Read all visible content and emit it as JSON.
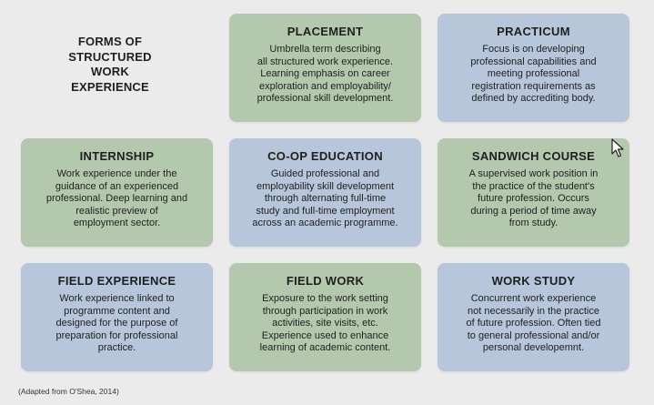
{
  "title": "FORMS OF\nSTRUCTURED\nWORK\nEXPERIENCE",
  "cards": [
    {
      "title": "PLACEMENT",
      "description": "Umbrella term describing\nall structured work experience.\nLearning emphasis on career\nexploration and employability/\nprofessional skill development.",
      "color": "#b4c8ad"
    },
    {
      "title": "PRACTICUM",
      "description": "Focus is on developing\nprofessional capabilities and\nmeeting professional\nregistration requirements as\ndefined by accrediting body.",
      "color": "#b7c6da"
    },
    {
      "title": "INTERNSHIP",
      "description": "Work experience under the\nguidance of an experienced\nprofessional. Deep learning and\nrealistic preview of\nemployment sector.",
      "color": "#b4c8ad"
    },
    {
      "title": "CO-OP EDUCATION",
      "description": "Guided professional and\nemployability skill development\nthrough alternating full-time\nstudy and full-time employment\nacross an academic programme.",
      "color": "#b7c6da"
    },
    {
      "title": "SANDWICH COURSE",
      "description": "A supervised work position in\nthe practice of the student's\nfuture profession. Occurs\nduring a period of time away\nfrom study.",
      "color": "#b4c8ad"
    },
    {
      "title": "FIELD EXPERIENCE",
      "description": "Work experience linked to\nprogramme content and\ndesigned for the purpose of\npreparation for professional\npractice.",
      "color": "#b7c6da"
    },
    {
      "title": "FIELD WORK",
      "description": "Exposure to the work setting\nthrough participation in work\nactivities, site visits, etc.\nExperience used to enhance\nlearning of academic content.",
      "color": "#b4c8ad"
    },
    {
      "title": "WORK STUDY",
      "description": "Concurrent work experience\nnot necessarily in the practice\nof future profession. Often tied\nto general professional and/or\npersonal developemnt.",
      "color": "#b7c6da"
    }
  ],
  "citation": "(Adapted from O'Shea, 2014)",
  "cursor_icon": "mouse-pointer-icon"
}
